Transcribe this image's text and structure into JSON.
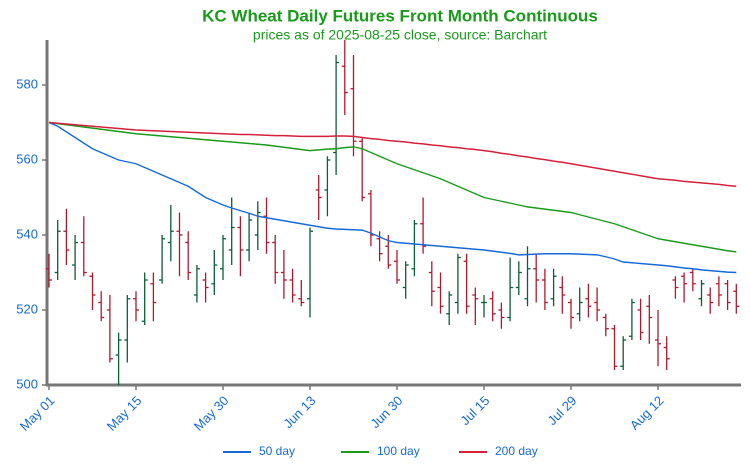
{
  "chart_data": {
    "type": "ohlc",
    "title": "KC Wheat Daily Futures Front Month Continuous",
    "subtitle": "prices as of 2025-08-25 close, source: Barchart",
    "title_color": "#1a9a1a",
    "categories": [
      "May 01",
      null,
      null,
      null,
      null,
      null,
      null,
      null,
      null,
      null,
      "May 15",
      null,
      null,
      null,
      null,
      null,
      null,
      null,
      null,
      null,
      "May 30",
      null,
      null,
      null,
      null,
      null,
      null,
      null,
      null,
      null,
      "Jun 13",
      null,
      null,
      null,
      null,
      null,
      null,
      null,
      null,
      null,
      "Jun 30",
      null,
      null,
      null,
      null,
      null,
      null,
      null,
      null,
      null,
      "Jul 15",
      null,
      null,
      null,
      null,
      null,
      null,
      null,
      null,
      null,
      "Jul 29",
      null,
      null,
      null,
      null,
      null,
      null,
      null,
      null,
      null,
      "Aug 12",
      null,
      null,
      null,
      null,
      null,
      null,
      null,
      null,
      null
    ],
    "ohlc": {
      "open": [
        531,
        530,
        541,
        532,
        538,
        529,
        522,
        520,
        508,
        512,
        523,
        517,
        527,
        528,
        538,
        541,
        538,
        524,
        528,
        527,
        531,
        536,
        542,
        536,
        540,
        545,
        538,
        530,
        528,
        523,
        523,
        552,
        552,
        562,
        585,
        579,
        565,
        551,
        539,
        537,
        533,
        526,
        531,
        543,
        530,
        526,
        519,
        522,
        533,
        524,
        522,
        523,
        520,
        518,
        526,
        523,
        531,
        528,
        523,
        526,
        522,
        519,
        523,
        522,
        518,
        515,
        505,
        513,
        520,
        521,
        512,
        510,
        528,
        529,
        530,
        523,
        524,
        527,
        527,
        525
      ],
      "high": [
        535,
        544,
        547,
        540,
        545,
        530,
        525,
        524,
        514,
        524,
        525,
        530,
        530,
        540,
        548,
        546,
        541,
        532,
        530,
        536,
        540,
        550,
        545,
        546,
        549,
        550,
        540,
        536,
        531,
        528,
        542,
        556,
        561,
        588,
        592,
        588,
        566,
        552,
        541,
        540,
        536,
        533,
        544,
        550,
        533,
        530,
        525,
        535,
        535,
        526,
        524,
        525,
        522,
        534,
        533,
        537,
        535,
        531,
        531,
        529,
        523,
        526,
        527,
        526,
        519,
        516,
        513,
        523,
        523,
        524,
        520,
        513,
        529,
        530,
        531,
        528,
        526,
        529,
        528,
        527
      ],
      "low": [
        526,
        528,
        532,
        528,
        529,
        520,
        517,
        506,
        500,
        506,
        517,
        516,
        517,
        527,
        533,
        529,
        528,
        522,
        522,
        524,
        528,
        532,
        529,
        533,
        536,
        535,
        527,
        523,
        522,
        521,
        518,
        544,
        545,
        556,
        572,
        561,
        549,
        537,
        533,
        531,
        527,
        523,
        529,
        535,
        521,
        519,
        516,
        519,
        519,
        516,
        518,
        517,
        515,
        517,
        524,
        521,
        522,
        520,
        521,
        519,
        515,
        517,
        518,
        517,
        513,
        504,
        504,
        512,
        512,
        511,
        505,
        504,
        523,
        522,
        525,
        521,
        519,
        521,
        520,
        519
      ],
      "close": [
        528,
        541,
        536,
        538,
        530,
        524,
        518,
        507,
        512,
        523,
        520,
        528,
        522,
        539,
        541,
        540,
        530,
        531,
        526,
        532,
        539,
        542,
        536,
        544,
        546,
        538,
        530,
        528,
        524,
        522,
        541,
        550,
        560,
        586,
        578,
        565,
        550,
        540,
        535,
        532,
        528,
        532,
        543,
        537,
        525,
        521,
        524,
        534,
        521,
        523,
        522,
        519,
        518,
        526,
        530,
        531,
        528,
        522,
        529,
        524,
        518,
        522,
        521,
        520,
        515,
        505,
        512,
        522,
        514,
        518,
        511,
        507,
        526,
        527,
        527,
        527,
        522,
        524,
        522,
        521
      ]
    },
    "up_color": "#0b5e37",
    "down_color": "#b0192c",
    "series": [
      {
        "name": "50 day",
        "color": "#1769d6",
        "values": [
          570,
          569,
          567.5,
          566,
          564.5,
          563,
          562,
          561,
          560,
          559.5,
          559,
          558,
          557,
          556,
          555,
          554,
          553,
          551.5,
          550,
          549,
          548,
          547.2,
          546.5,
          545.8,
          545,
          544.6,
          544.2,
          543.8,
          543.4,
          543,
          542.6,
          542.2,
          541.8,
          541.6,
          541.5,
          541.4,
          541.3,
          540.5,
          539.5,
          538.5,
          538,
          537.8,
          537.6,
          537.4,
          537.2,
          537,
          536.8,
          536.6,
          536.4,
          536.2,
          536,
          535.7,
          535.4,
          535.1,
          534.7,
          534.8,
          534.9,
          535,
          535,
          535,
          535,
          534.9,
          534.8,
          534.7,
          534.2,
          533.6,
          532.8,
          532.6,
          532.4,
          532.2,
          532,
          531.8,
          531.5,
          531.2,
          531,
          530.7,
          530.5,
          530.3,
          530.1,
          530
        ]
      },
      {
        "name": "100 day",
        "color": "#1a9a1a",
        "values": [
          570,
          569.7,
          569.4,
          569.1,
          568.8,
          568.5,
          568.2,
          567.9,
          567.6,
          567.3,
          567,
          566.8,
          566.6,
          566.4,
          566.2,
          566,
          565.8,
          565.6,
          565.4,
          565.2,
          565,
          564.8,
          564.6,
          564.4,
          564.2,
          564,
          563.7,
          563.4,
          563.1,
          562.8,
          562.5,
          562.7,
          562.9,
          563,
          563.3,
          563.5,
          563,
          562,
          561,
          560,
          559,
          558.2,
          557.4,
          556.6,
          555.8,
          555,
          554,
          553,
          552,
          551,
          550,
          549.5,
          549,
          548.5,
          548,
          547.5,
          547.2,
          546.9,
          546.6,
          546.3,
          546,
          545.4,
          544.8,
          544.2,
          543.6,
          543,
          542.2,
          541.4,
          540.6,
          539.8,
          539,
          538.6,
          538.2,
          537.8,
          537.4,
          537,
          536.6,
          536.2,
          535.8,
          535.5
        ]
      },
      {
        "name": "200 day",
        "color": "#d4203a",
        "values": [
          570,
          569.8,
          569.6,
          569.4,
          569.2,
          569,
          568.8,
          568.6,
          568.4,
          568.2,
          568,
          567.9,
          567.8,
          567.7,
          567.6,
          567.5,
          567.4,
          567.3,
          567.2,
          567.1,
          567,
          566.9,
          566.8,
          566.8,
          566.7,
          566.6,
          566.5,
          566.5,
          566.4,
          566.3,
          566.3,
          566.3,
          566.3,
          566.4,
          566.4,
          566.3,
          566,
          565.7,
          565.5,
          565.2,
          565,
          564.8,
          564.5,
          564.3,
          564,
          563.8,
          563.5,
          563.3,
          563,
          562.8,
          562.5,
          562.2,
          561.8,
          561.5,
          561.1,
          560.8,
          560.4,
          560.1,
          559.7,
          559.4,
          559,
          558.6,
          558.2,
          557.8,
          557.4,
          557,
          556.6,
          556.2,
          555.8,
          555.4,
          555,
          554.8,
          554.6,
          554.3,
          554.1,
          553.9,
          553.7,
          553.5,
          553.2,
          553
        ]
      }
    ],
    "ylim": [
      500,
      592
    ],
    "yticks": [
      500,
      520,
      540,
      560,
      580
    ],
    "tick_color": "#1769d6",
    "legend": "bottom"
  }
}
